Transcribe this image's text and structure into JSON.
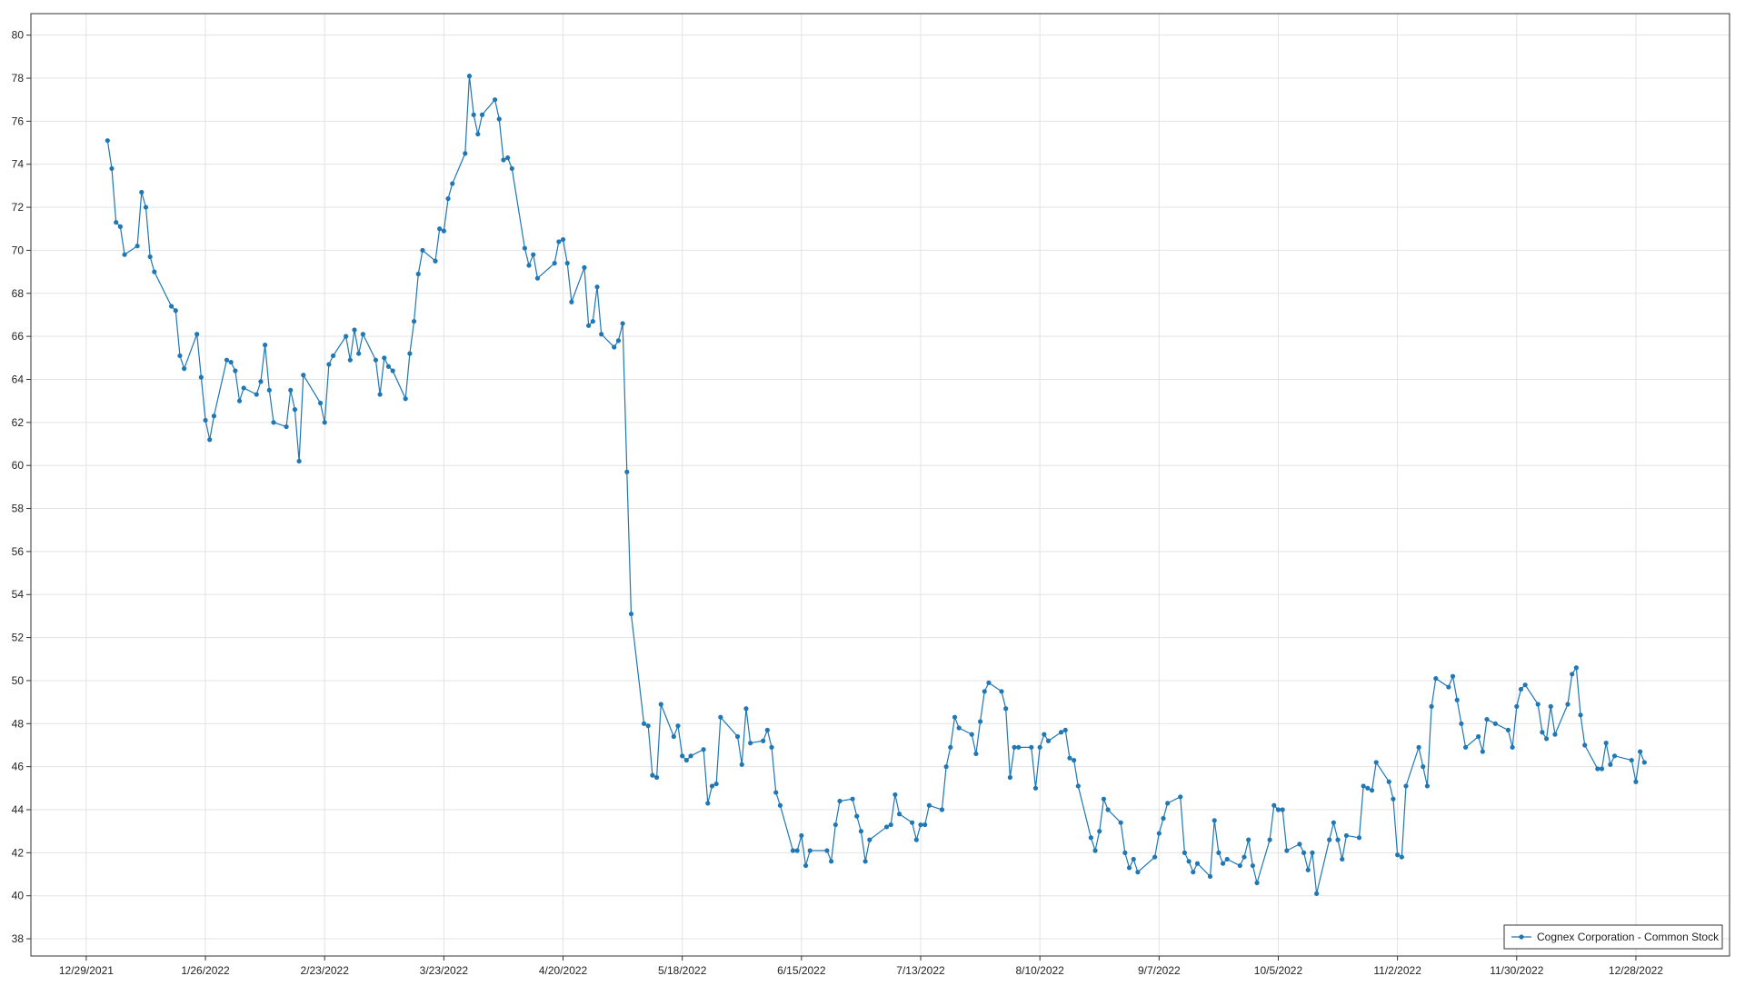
{
  "chart_data": {
    "type": "line",
    "x": [
      "1/3/2022",
      "1/4/2022",
      "1/5/2022",
      "1/6/2022",
      "1/7/2022",
      "1/10/2022",
      "1/11/2022",
      "1/12/2022",
      "1/13/2022",
      "1/14/2022",
      "1/18/2022",
      "1/19/2022",
      "1/20/2022",
      "1/21/2022",
      "1/24/2022",
      "1/25/2022",
      "1/26/2022",
      "1/27/2022",
      "1/28/2022",
      "1/31/2022",
      "2/1/2022",
      "2/2/2022",
      "2/3/2022",
      "2/4/2022",
      "2/7/2022",
      "2/8/2022",
      "2/9/2022",
      "2/10/2022",
      "2/11/2022",
      "2/14/2022",
      "2/15/2022",
      "2/16/2022",
      "2/17/2022",
      "2/18/2022",
      "2/22/2022",
      "2/23/2022",
      "2/24/2022",
      "2/25/2022",
      "2/28/2022",
      "3/1/2022",
      "3/2/2022",
      "3/3/2022",
      "3/4/2022",
      "3/7/2022",
      "3/8/2022",
      "3/9/2022",
      "3/10/2022",
      "3/11/2022",
      "3/14/2022",
      "3/15/2022",
      "3/16/2022",
      "3/17/2022",
      "3/18/2022",
      "3/21/2022",
      "3/22/2022",
      "3/23/2022",
      "3/24/2022",
      "3/25/2022",
      "3/28/2022",
      "3/29/2022",
      "3/30/2022",
      "3/31/2022",
      "4/1/2022",
      "4/4/2022",
      "4/5/2022",
      "4/6/2022",
      "4/7/2022",
      "4/8/2022",
      "4/11/2022",
      "4/12/2022",
      "4/13/2022",
      "4/14/2022",
      "4/18/2022",
      "4/19/2022",
      "4/20/2022",
      "4/21/2022",
      "4/22/2022",
      "4/25/2022",
      "4/26/2022",
      "4/27/2022",
      "4/28/2022",
      "4/29/2022",
      "5/2/2022",
      "5/3/2022",
      "5/4/2022",
      "5/5/2022",
      "5/6/2022",
      "5/9/2022",
      "5/10/2022",
      "5/11/2022",
      "5/12/2022",
      "5/13/2022",
      "5/16/2022",
      "5/17/2022",
      "5/18/2022",
      "5/19/2022",
      "5/20/2022",
      "5/23/2022",
      "5/24/2022",
      "5/25/2022",
      "5/26/2022",
      "5/27/2022",
      "5/31/2022",
      "6/1/2022",
      "6/2/2022",
      "6/3/2022",
      "6/6/2022",
      "6/7/2022",
      "6/8/2022",
      "6/9/2022",
      "6/10/2022",
      "6/13/2022",
      "6/14/2022",
      "6/15/2022",
      "6/16/2022",
      "6/17/2022",
      "6/21/2022",
      "6/22/2022",
      "6/23/2022",
      "6/24/2022",
      "6/27/2022",
      "6/28/2022",
      "6/29/2022",
      "6/30/2022",
      "7/1/2022",
      "7/5/2022",
      "7/6/2022",
      "7/7/2022",
      "7/8/2022",
      "7/11/2022",
      "7/12/2022",
      "7/13/2022",
      "7/14/2022",
      "7/15/2022",
      "7/18/2022",
      "7/19/2022",
      "7/20/2022",
      "7/21/2022",
      "7/22/2022",
      "7/25/2022",
      "7/26/2022",
      "7/27/2022",
      "7/28/2022",
      "7/29/2022",
      "8/1/2022",
      "8/2/2022",
      "8/3/2022",
      "8/4/2022",
      "8/5/2022",
      "8/8/2022",
      "8/9/2022",
      "8/10/2022",
      "8/11/2022",
      "8/12/2022",
      "8/15/2022",
      "8/16/2022",
      "8/17/2022",
      "8/18/2022",
      "8/19/2022",
      "8/22/2022",
      "8/23/2022",
      "8/24/2022",
      "8/25/2022",
      "8/26/2022",
      "8/29/2022",
      "8/30/2022",
      "8/31/2022",
      "9/1/2022",
      "9/2/2022",
      "9/6/2022",
      "9/7/2022",
      "9/8/2022",
      "9/9/2022",
      "9/12/2022",
      "9/13/2022",
      "9/14/2022",
      "9/15/2022",
      "9/16/2022",
      "9/19/2022",
      "9/20/2022",
      "9/21/2022",
      "9/22/2022",
      "9/23/2022",
      "9/26/2022",
      "9/27/2022",
      "9/28/2022",
      "9/29/2022",
      "9/30/2022",
      "10/3/2022",
      "10/4/2022",
      "10/5/2022",
      "10/6/2022",
      "10/7/2022",
      "10/10/2022",
      "10/11/2022",
      "10/12/2022",
      "10/13/2022",
      "10/14/2022",
      "10/17/2022",
      "10/18/2022",
      "10/19/2022",
      "10/20/2022",
      "10/21/2022",
      "10/24/2022",
      "10/25/2022",
      "10/26/2022",
      "10/27/2022",
      "10/28/2022",
      "10/31/2022",
      "11/1/2022",
      "11/2/2022",
      "11/3/2022",
      "11/4/2022",
      "11/7/2022",
      "11/8/2022",
      "11/9/2022",
      "11/10/2022",
      "11/11/2022",
      "11/14/2022",
      "11/15/2022",
      "11/16/2022",
      "11/17/2022",
      "11/18/2022",
      "11/21/2022",
      "11/22/2022",
      "11/23/2022",
      "11/25/2022",
      "11/28/2022",
      "11/29/2022",
      "11/30/2022",
      "12/1/2022",
      "12/2/2022",
      "12/5/2022",
      "12/6/2022",
      "12/7/2022",
      "12/8/2022",
      "12/9/2022",
      "12/12/2022",
      "12/13/2022",
      "12/14/2022",
      "12/15/2022",
      "12/16/2022",
      "12/19/2022",
      "12/20/2022",
      "12/21/2022",
      "12/22/2022",
      "12/23/2022",
      "12/27/2022",
      "12/28/2022",
      "12/29/2022",
      "12/30/2022"
    ],
    "series": [
      {
        "name": "Cognex Corporation - Common Stock",
        "color": "#1f77b4",
        "values": [
          75.1,
          73.8,
          71.3,
          71.1,
          69.8,
          70.2,
          72.7,
          72.0,
          69.7,
          69.0,
          67.4,
          67.2,
          65.1,
          64.5,
          66.1,
          64.1,
          62.1,
          61.2,
          62.3,
          64.9,
          64.8,
          64.4,
          63.0,
          63.6,
          63.3,
          63.9,
          65.6,
          63.5,
          62.0,
          61.8,
          63.5,
          62.6,
          60.2,
          64.2,
          62.9,
          62.0,
          64.7,
          65.1,
          66.0,
          64.9,
          66.3,
          65.2,
          66.1,
          64.9,
          63.3,
          65.0,
          64.6,
          64.4,
          63.1,
          65.2,
          66.7,
          68.9,
          70.0,
          69.5,
          71.0,
          70.9,
          72.4,
          73.1,
          74.5,
          78.1,
          76.3,
          75.4,
          76.3,
          77.0,
          76.1,
          74.2,
          74.3,
          73.8,
          70.1,
          69.3,
          69.8,
          68.7,
          69.4,
          70.4,
          70.5,
          69.4,
          67.6,
          69.2,
          66.5,
          66.7,
          68.3,
          66.1,
          65.5,
          65.8,
          66.6,
          59.7,
          53.1,
          48.0,
          47.9,
          45.6,
          45.5,
          48.9,
          47.4,
          47.9,
          46.5,
          46.3,
          46.5,
          46.8,
          44.3,
          45.1,
          45.2,
          48.3,
          47.4,
          46.1,
          48.7,
          47.1,
          47.2,
          47.7,
          46.9,
          44.8,
          44.2,
          42.1,
          42.1,
          42.8,
          41.4,
          42.1,
          42.1,
          41.6,
          43.3,
          44.4,
          44.5,
          43.7,
          43.0,
          41.6,
          42.6,
          43.2,
          43.3,
          44.7,
          43.8,
          43.4,
          42.6,
          43.3,
          43.3,
          44.2,
          44.0,
          46.0,
          46.9,
          48.3,
          47.8,
          47.5,
          46.6,
          48.1,
          49.5,
          49.9,
          49.5,
          48.7,
          45.5,
          46.9,
          46.9,
          46.9,
          45.0,
          46.9,
          47.5,
          47.2,
          47.6,
          47.7,
          46.4,
          46.3,
          45.1,
          42.7,
          42.1,
          43.0,
          44.5,
          44.0,
          43.4,
          42.0,
          41.3,
          41.7,
          41.1,
          41.8,
          42.9,
          43.6,
          44.3,
          44.6,
          42.0,
          41.6,
          41.1,
          41.5,
          40.9,
          43.5,
          42.0,
          41.5,
          41.7,
          41.4,
          41.8,
          42.6,
          41.4,
          40.6,
          42.6,
          44.2,
          44.0,
          44.0,
          42.1,
          42.4,
          42.0,
          41.2,
          42.0,
          40.1,
          42.6,
          43.4,
          42.6,
          41.7,
          42.8,
          42.7,
          45.1,
          45.0,
          44.9,
          46.2,
          45.3,
          44.5,
          41.9,
          41.8,
          45.1,
          46.9,
          46.0,
          45.1,
          48.8,
          50.1,
          49.7,
          50.2,
          49.1,
          48.0,
          46.9,
          47.4,
          46.7,
          48.2,
          48.0,
          47.7,
          46.9,
          48.8,
          49.6,
          49.8,
          48.9,
          47.6,
          47.3,
          48.8,
          47.5,
          48.9,
          50.3,
          50.6,
          48.4,
          47.0,
          45.9,
          45.9,
          47.1,
          46.1,
          46.5,
          46.3,
          45.3,
          46.7,
          46.2
        ]
      }
    ],
    "xlim": [
      "12/16/2021",
      "1/19/2023"
    ],
    "xticks": [
      "12/29/2021",
      "1/26/2022",
      "2/23/2022",
      "3/23/2022",
      "4/20/2022",
      "5/18/2022",
      "6/15/2022",
      "7/13/2022",
      "8/10/2022",
      "9/7/2022",
      "10/5/2022",
      "11/2/2022",
      "11/30/2022",
      "12/28/2022"
    ],
    "ylim": [
      37.2,
      81.0
    ],
    "yticks": [
      38,
      40,
      42,
      44,
      46,
      48,
      50,
      52,
      54,
      56,
      58,
      60,
      62,
      64,
      66,
      68,
      70,
      72,
      74,
      76,
      78,
      80
    ],
    "grid": true,
    "legend": "lower right"
  }
}
